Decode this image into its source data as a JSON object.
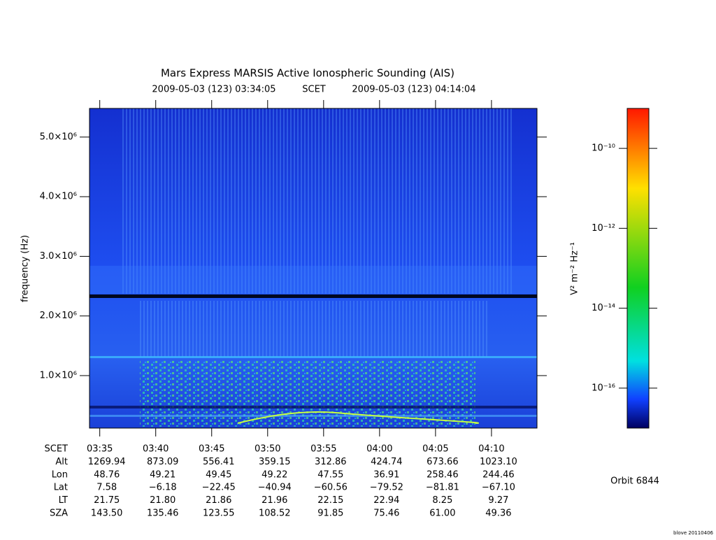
{
  "chart_data": {
    "type": "spectrogram",
    "title": "Mars Express MARSIS Active Ionospheric Sounding (AIS)",
    "start": "2009-05-03 (123) 03:34:05",
    "frame": "SCET",
    "end": "2009-05-03 (123) 04:14:04",
    "ylabel": "frequency (Hz)",
    "ylim": [
      120000,
      5480000
    ],
    "yticks": [
      {
        "value": 1000000,
        "label": "1.0×10⁶"
      },
      {
        "value": 2000000,
        "label": "2.0×10⁶"
      },
      {
        "value": 3000000,
        "label": "3.0×10⁶"
      },
      {
        "value": 4000000,
        "label": "4.0×10⁶"
      },
      {
        "value": 5000000,
        "label": "5.0×10⁶"
      }
    ],
    "xticks": [
      "03:35",
      "03:40",
      "03:45",
      "03:50",
      "03:55",
      "04:00",
      "04:05",
      "04:10"
    ],
    "colorbar": {
      "label": "V² m⁻² Hz⁻¹",
      "log": true,
      "clim": [
        1e-17,
        1e-09
      ],
      "ticks": [
        {
          "value": 1e-10,
          "label": "10⁻¹⁰"
        },
        {
          "value": 1e-12,
          "label": "10⁻¹²"
        },
        {
          "value": 1e-14,
          "label": "10⁻¹⁴"
        },
        {
          "value": 1e-16,
          "label": "10⁻¹⁶"
        }
      ]
    }
  },
  "table": {
    "row_labels": [
      "SCET",
      "Alt",
      "Lon",
      "Lat",
      "LT",
      "SZA"
    ],
    "rows": [
      [
        "1269.94",
        "873.09",
        "556.41",
        "359.15",
        "312.86",
        "424.74",
        "673.66",
        "1023.10"
      ],
      [
        "48.76",
        "49.21",
        "49.45",
        "49.22",
        "47.55",
        "36.91",
        "258.46",
        "244.46"
      ],
      [
        "7.58",
        "−6.18",
        "−22.45",
        "−40.94",
        "−60.56",
        "−79.52",
        "−81.81",
        "−67.10"
      ],
      [
        "21.75",
        "21.80",
        "21.86",
        "21.96",
        "22.15",
        "22.94",
        "8.25",
        "9.27"
      ],
      [
        "143.50",
        "135.46",
        "123.55",
        "108.52",
        "91.85",
        "75.46",
        "61.00",
        "49.36"
      ]
    ]
  },
  "orbit": "Orbit 6844",
  "credit": "blove 20110406"
}
